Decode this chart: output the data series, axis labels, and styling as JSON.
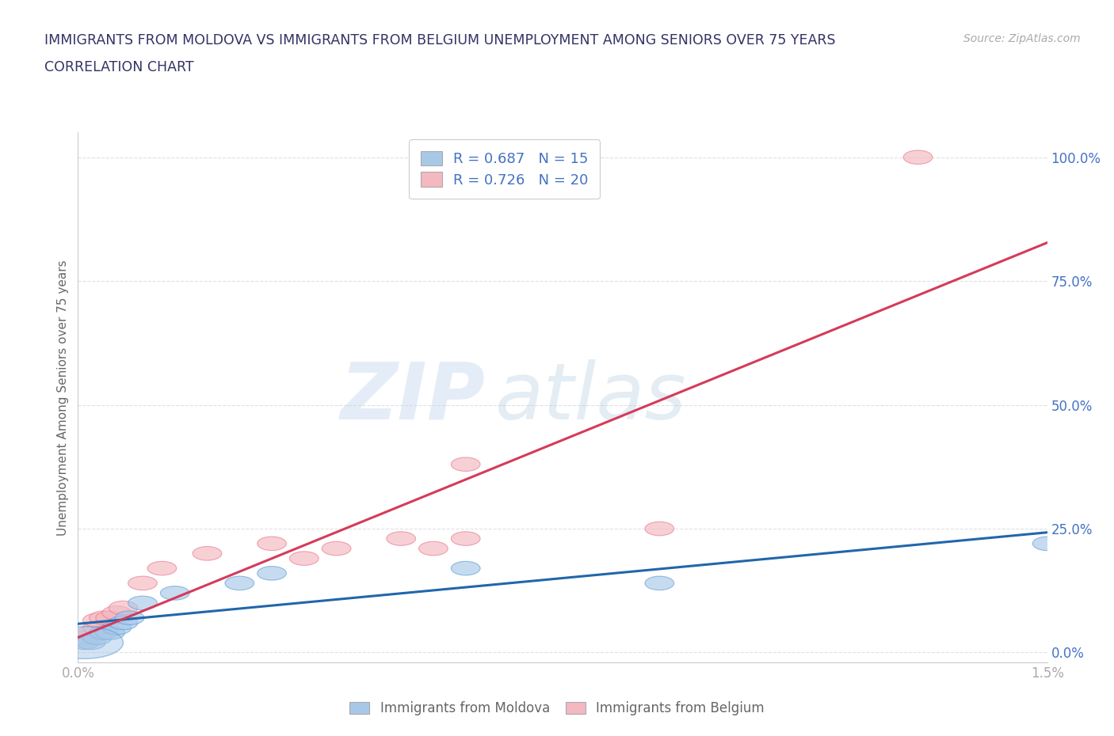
{
  "title_line1": "IMMIGRANTS FROM MOLDOVA VS IMMIGRANTS FROM BELGIUM UNEMPLOYMENT AMONG SENIORS OVER 75 YEARS",
  "title_line2": "CORRELATION CHART",
  "source": "Source: ZipAtlas.com",
  "ylabel": "Unemployment Among Seniors over 75 years",
  "xlim": [
    0.0,
    0.015
  ],
  "ylim": [
    -0.02,
    1.05
  ],
  "xticks": [
    0.0,
    0.003,
    0.006,
    0.009,
    0.012,
    0.015
  ],
  "xticklabels": [
    "0.0%",
    "",
    "",
    "",
    "",
    "1.5%"
  ],
  "yticks": [
    0.0,
    0.25,
    0.5,
    0.75,
    1.0
  ],
  "yticklabels": [
    "0.0%",
    "25.0%",
    "50.0%",
    "75.0%",
    "100.0%"
  ],
  "moldova_color": "#a8c8e8",
  "moldova_edge_color": "#5a9fd4",
  "belgium_color": "#f4b8c0",
  "belgium_edge_color": "#e8788a",
  "moldova_line_color": "#2166ac",
  "belgium_line_color": "#d63a5a",
  "moldova_R": 0.687,
  "moldova_N": 15,
  "belgium_R": 0.726,
  "belgium_N": 20,
  "moldova_points_x": [
    0.0001,
    0.0002,
    0.0003,
    0.0004,
    0.0005,
    0.0006,
    0.0007,
    0.0008,
    0.001,
    0.0015,
    0.0025,
    0.003,
    0.006,
    0.009,
    0.015
  ],
  "moldova_points_y": [
    0.02,
    0.02,
    0.03,
    0.04,
    0.04,
    0.05,
    0.06,
    0.07,
    0.1,
    0.12,
    0.14,
    0.16,
    0.17,
    0.14,
    0.22
  ],
  "belgium_points_x": [
    0.0001,
    0.0002,
    0.0003,
    0.0003,
    0.0004,
    0.0005,
    0.0006,
    0.0007,
    0.001,
    0.0013,
    0.002,
    0.003,
    0.0035,
    0.004,
    0.005,
    0.0055,
    0.006,
    0.006,
    0.009,
    0.013
  ],
  "belgium_points_y": [
    0.03,
    0.04,
    0.05,
    0.065,
    0.07,
    0.07,
    0.08,
    0.09,
    0.14,
    0.17,
    0.2,
    0.22,
    0.19,
    0.21,
    0.23,
    0.21,
    0.23,
    0.38,
    0.25,
    1.0
  ],
  "watermark_zip": "ZIP",
  "watermark_atlas": "atlas",
  "background_color": "#ffffff",
  "title_color": "#333366",
  "axis_label_color": "#666666",
  "tick_color": "#aaaaaa",
  "ytick_color": "#4472c4",
  "grid_color": "#dddddd",
  "legend_label_color": "#000000",
  "legend_rn_color": "#4472c4"
}
